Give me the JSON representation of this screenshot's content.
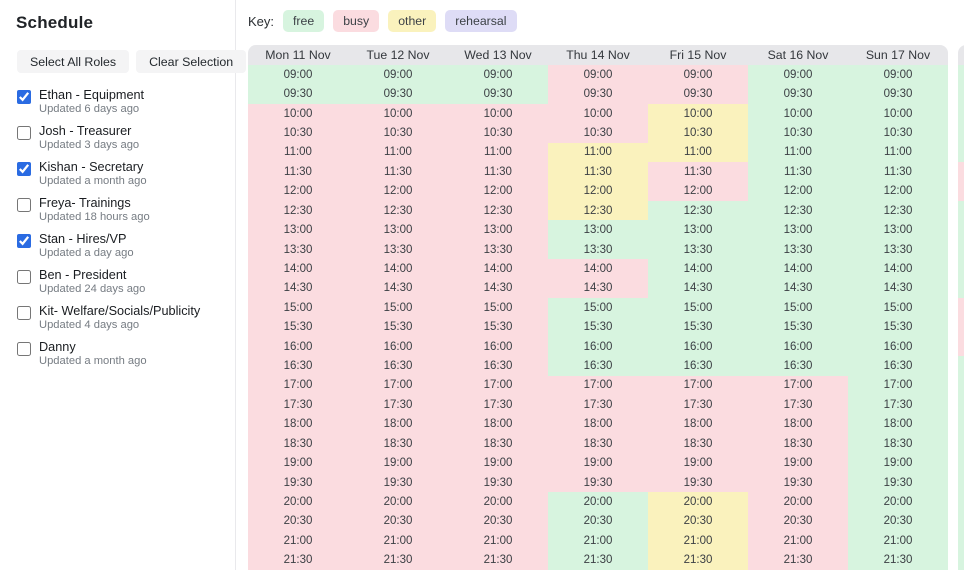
{
  "sidebar": {
    "title": "Schedule",
    "buttons": {
      "select_all": "Select All Roles",
      "clear": "Clear Selection"
    },
    "roles": [
      {
        "name": "Ethan - Equipment",
        "updated": "Updated 6 days ago",
        "checked": true
      },
      {
        "name": "Josh - Treasurer",
        "updated": "Updated 3 days ago",
        "checked": false
      },
      {
        "name": "Kishan - Secretary",
        "updated": "Updated a month ago",
        "checked": true
      },
      {
        "name": "Freya- Trainings",
        "updated": "Updated 18 hours ago",
        "checked": false
      },
      {
        "name": "Stan - Hires/VP",
        "updated": "Updated a day ago",
        "checked": true
      },
      {
        "name": "Ben - President",
        "updated": "Updated 24 days ago",
        "checked": false
      },
      {
        "name": "Kit- Welfare/Socials/Publicity",
        "updated": "Updated 4 days ago",
        "checked": false
      },
      {
        "name": "Danny",
        "updated": "Updated a month ago",
        "checked": false
      }
    ]
  },
  "key": {
    "label": "Key:",
    "items": [
      {
        "label": "free",
        "color": "#d7f4df"
      },
      {
        "label": "busy",
        "color": "#fbdce0"
      },
      {
        "label": "other",
        "color": "#faf2bd"
      },
      {
        "label": "rehearsal",
        "color": "#dedcf6"
      }
    ]
  },
  "colors": {
    "free": "#d7f4df",
    "busy": "#fbdce0",
    "other": "#faf2bd",
    "rehearsal": "#dedcf6",
    "header_bg": "#e7e7ea"
  },
  "schedule": {
    "times": [
      "09:00",
      "09:30",
      "10:00",
      "10:30",
      "11:00",
      "11:30",
      "12:00",
      "12:30",
      "13:00",
      "13:30",
      "14:00",
      "14:30",
      "15:00",
      "15:30",
      "16:00",
      "16:30",
      "17:00",
      "17:30",
      "18:00",
      "18:30",
      "19:00",
      "19:30",
      "20:00",
      "20:30",
      "21:00",
      "21:30"
    ],
    "days": [
      {
        "label": "Mon 11 Nov",
        "slots": [
          "free",
          "free",
          "busy",
          "busy",
          "busy",
          "busy",
          "busy",
          "busy",
          "busy",
          "busy",
          "busy",
          "busy",
          "busy",
          "busy",
          "busy",
          "busy",
          "busy",
          "busy",
          "busy",
          "busy",
          "busy",
          "busy",
          "busy",
          "busy",
          "busy",
          "busy"
        ]
      },
      {
        "label": "Tue 12 Nov",
        "slots": [
          "free",
          "free",
          "busy",
          "busy",
          "busy",
          "busy",
          "busy",
          "busy",
          "busy",
          "busy",
          "busy",
          "busy",
          "busy",
          "busy",
          "busy",
          "busy",
          "busy",
          "busy",
          "busy",
          "busy",
          "busy",
          "busy",
          "busy",
          "busy",
          "busy",
          "busy"
        ]
      },
      {
        "label": "Wed 13 Nov",
        "slots": [
          "free",
          "free",
          "busy",
          "busy",
          "busy",
          "busy",
          "busy",
          "busy",
          "busy",
          "busy",
          "busy",
          "busy",
          "busy",
          "busy",
          "busy",
          "busy",
          "busy",
          "busy",
          "busy",
          "busy",
          "busy",
          "busy",
          "busy",
          "busy",
          "busy",
          "busy"
        ]
      },
      {
        "label": "Thu 14 Nov",
        "slots": [
          "busy",
          "busy",
          "busy",
          "busy",
          "other",
          "other",
          "other",
          "other",
          "free",
          "free",
          "busy",
          "busy",
          "free",
          "free",
          "free",
          "free",
          "busy",
          "busy",
          "busy",
          "busy",
          "busy",
          "busy",
          "free",
          "free",
          "free",
          "free"
        ]
      },
      {
        "label": "Fri 15 Nov",
        "slots": [
          "busy",
          "busy",
          "other",
          "other",
          "other",
          "busy",
          "busy",
          "free",
          "free",
          "free",
          "free",
          "free",
          "free",
          "free",
          "free",
          "free",
          "busy",
          "busy",
          "busy",
          "busy",
          "busy",
          "busy",
          "other",
          "other",
          "other",
          "other"
        ]
      },
      {
        "label": "Sat 16 Nov",
        "slots": [
          "free",
          "free",
          "free",
          "free",
          "free",
          "free",
          "free",
          "free",
          "free",
          "free",
          "free",
          "free",
          "free",
          "free",
          "free",
          "free",
          "busy",
          "busy",
          "busy",
          "busy",
          "busy",
          "busy",
          "busy",
          "busy",
          "busy",
          "busy"
        ]
      },
      {
        "label": "Sun 17 Nov",
        "slots": [
          "free",
          "free",
          "free",
          "free",
          "free",
          "free",
          "free",
          "free",
          "free",
          "free",
          "free",
          "free",
          "free",
          "free",
          "free",
          "free",
          "free",
          "free",
          "free",
          "free",
          "free",
          "free",
          "free",
          "free",
          "free",
          "free"
        ]
      }
    ],
    "next_week_peek": {
      "slots": [
        "free",
        "free",
        "free",
        "free",
        "free",
        "busy",
        "busy",
        "free",
        "free",
        "free",
        "free",
        "free",
        "busy",
        "busy",
        "busy",
        "free",
        "free",
        "free",
        "free",
        "free",
        "free",
        "free",
        "free",
        "free",
        "free",
        "free"
      ]
    }
  }
}
